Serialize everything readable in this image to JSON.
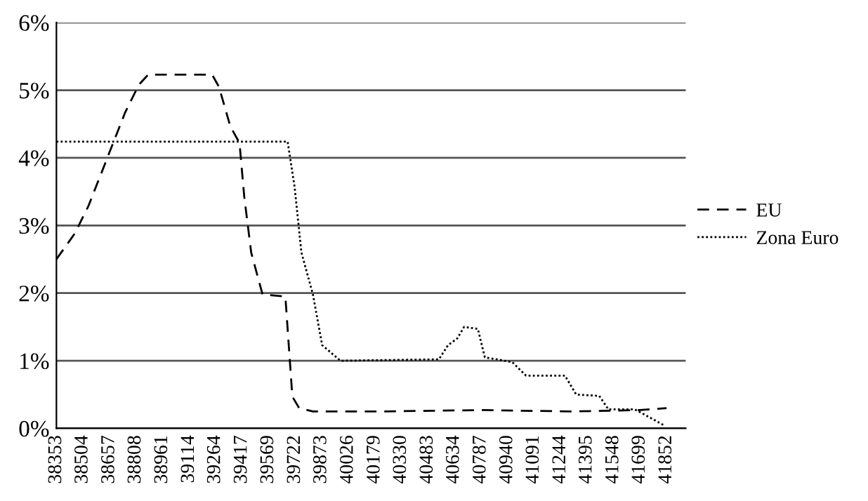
{
  "chart_data": {
    "type": "line",
    "xlim": [
      38353,
      41962
    ],
    "xticks": [
      38353,
      38504,
      38657,
      38808,
      38961,
      39114,
      39264,
      39417,
      39569,
      39722,
      39873,
      40026,
      40179,
      40330,
      40483,
      40634,
      40787,
      40940,
      41091,
      41244,
      41395,
      41548,
      41699,
      41852
    ],
    "ylim": [
      0,
      6
    ],
    "yticks": [
      {
        "value": 0,
        "label": "0%"
      },
      {
        "value": 1,
        "label": "1%"
      },
      {
        "value": 2,
        "label": "2%"
      },
      {
        "value": 3,
        "label": "3%"
      },
      {
        "value": 4,
        "label": "4%"
      },
      {
        "value": 5,
        "label": "5%"
      },
      {
        "value": 6,
        "label": "6%"
      }
    ],
    "grid": "y",
    "legend": "right",
    "series": [
      {
        "name": "EU",
        "color": "#000000",
        "line_style": "dashed",
        "x": [
          38353,
          38458,
          38537,
          38642,
          38747,
          38826,
          38879,
          39246,
          39285,
          39351,
          39403,
          39430,
          39470,
          39535,
          39666,
          39706,
          39745,
          39824,
          40200,
          40800,
          41300,
          41700,
          41852
        ],
        "values": [
          2.5,
          2.88,
          3.29,
          3.98,
          4.67,
          5.08,
          5.23,
          5.23,
          5.05,
          4.46,
          4.22,
          3.43,
          2.6,
          1.98,
          1.95,
          0.47,
          0.3,
          0.25,
          0.25,
          0.27,
          0.25,
          0.27,
          0.3
        ]
      },
      {
        "name": "Zona Euro",
        "color": "#000000",
        "line_style": "dotted",
        "x": [
          38353,
          39679,
          39719,
          39758,
          39824,
          39877,
          39982,
          40546,
          40599,
          40652,
          40691,
          40770,
          40810,
          40967,
          41046,
          41269,
          41334,
          41466,
          41519,
          41668,
          41707,
          41834
        ],
        "values": [
          4.24,
          4.24,
          3.57,
          2.6,
          1.98,
          1.23,
          1.0,
          1.02,
          1.23,
          1.33,
          1.5,
          1.47,
          1.05,
          0.98,
          0.78,
          0.78,
          0.5,
          0.48,
          0.28,
          0.28,
          0.23,
          0.05
        ]
      }
    ]
  }
}
